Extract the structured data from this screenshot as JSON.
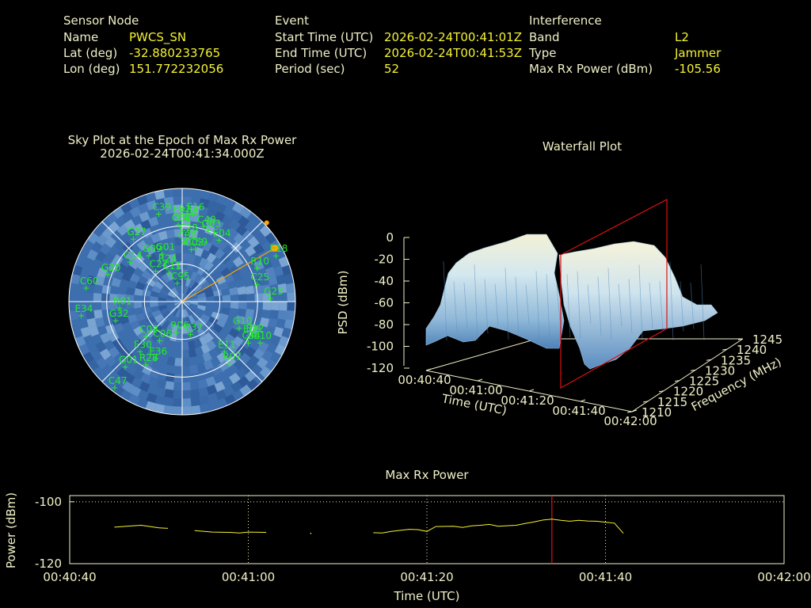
{
  "header": {
    "sensor": {
      "heading": "Sensor Node",
      "name_label": "Name",
      "name_value": "PWCS_SN",
      "lat_label": "Lat (deg)",
      "lat_value": "-32.880233765",
      "lon_label": "Lon (deg)",
      "lon_value": "151.772232056"
    },
    "event": {
      "heading": "Event",
      "start_label": "Start Time (UTC)",
      "start_value": "2026-02-24T00:41:01Z",
      "end_label": "End Time (UTC)",
      "end_value": "2026-02-24T00:41:53Z",
      "period_label": "Period (sec)",
      "period_value": "52"
    },
    "interference": {
      "heading": "Interference",
      "band_label": "Band",
      "band_value": "L2",
      "type_label": "Type",
      "type_value": "Jammer",
      "power_label": "Max Rx Power (dBm)",
      "power_value": "-105.56"
    }
  },
  "colors": {
    "background": "#000000",
    "label_text": "#f0f0c8",
    "value_text": "#f5f232",
    "satellite": "#22ee22",
    "direction": "#ffa500",
    "marker_line": "#dd1111",
    "power_line": "#f5f232"
  },
  "chart_data": [
    {
      "type": "scatter",
      "subtype": "polar sky plot",
      "title": "Sky Plot at the Epoch of Max Rx Power",
      "subtitle": "2026-02-24T00:41:34.000Z",
      "radial_rings_elevation_deg": [
        0,
        30,
        60
      ],
      "interference_direction": {
        "azimuth_deg": 60,
        "elevation_deg": 5
      },
      "satellites": [
        {
          "id": "C39",
          "az": 345,
          "el": 18
        },
        {
          "id": "E16",
          "az": 7,
          "el": 20
        },
        {
          "id": "E02",
          "az": 358,
          "el": 22
        },
        {
          "id": "E06",
          "az": 3,
          "el": 24
        },
        {
          "id": "G31",
          "az": 357,
          "el": 29
        },
        {
          "id": "C40",
          "az": 16,
          "el": 28
        },
        {
          "id": "G03",
          "az": 20,
          "el": 30
        },
        {
          "id": "C28",
          "az": 3,
          "el": 37
        },
        {
          "id": "E04",
          "az": 31,
          "el": 33
        },
        {
          "id": "E18",
          "az": 64,
          "el": 7
        },
        {
          "id": "G27",
          "az": 322,
          "el": 27
        },
        {
          "id": "C30",
          "az": 2,
          "el": 43
        },
        {
          "id": "C59",
          "az": 14,
          "el": 47
        },
        {
          "id": "C03",
          "az": 10,
          "el": 48
        },
        {
          "id": "G01",
          "az": 337,
          "el": 49
        },
        {
          "id": "G09",
          "az": 324,
          "el": 45
        },
        {
          "id": "R10",
          "az": 66,
          "el": 25
        },
        {
          "id": "C25",
          "az": 77,
          "el": 29
        },
        {
          "id": "G23",
          "az": 88,
          "el": 20
        },
        {
          "id": "C27",
          "az": 319,
          "el": 58
        },
        {
          "id": "C11",
          "az": 335,
          "el": 65
        },
        {
          "id": "G20",
          "az": 290,
          "el": 27
        },
        {
          "id": "C60",
          "az": 278,
          "el": 13
        },
        {
          "id": "C14",
          "az": 307,
          "el": 38
        },
        {
          "id": "C95",
          "az": 345,
          "el": 75
        },
        {
          "id": "R24",
          "az": 334,
          "el": 58
        },
        {
          "id": "R01",
          "az": 264,
          "el": 40
        },
        {
          "id": "G32",
          "az": 254,
          "el": 35
        },
        {
          "id": "E34",
          "az": 262,
          "el": 9
        },
        {
          "id": "G10",
          "az": 115,
          "el": 40
        },
        {
          "id": "E12",
          "az": 116,
          "el": 28
        },
        {
          "id": "E09",
          "az": 117,
          "el": 30
        },
        {
          "id": "C37",
          "az": 166,
          "el": 63
        },
        {
          "id": "C08",
          "az": 226,
          "el": 50
        },
        {
          "id": "C06",
          "az": 210,
          "el": 54
        },
        {
          "id": "E30",
          "az": 220,
          "el": 38
        },
        {
          "id": "R06",
          "az": 190,
          "el": 65
        },
        {
          "id": "E11",
          "az": 140,
          "el": 38
        },
        {
          "id": "C34",
          "az": 122,
          "el": 28
        },
        {
          "id": "E10",
          "az": 118,
          "el": 20
        },
        {
          "id": "E36",
          "az": 205,
          "el": 40
        },
        {
          "id": "G01b",
          "az": 221,
          "el": 21
        },
        {
          "id": "R28",
          "az": 210,
          "el": 32
        },
        {
          "id": "R07",
          "az": 143,
          "el": 28
        },
        {
          "id": "C47",
          "az": 218,
          "el": 3
        }
      ]
    },
    {
      "type": "area",
      "subtype": "3d waterfall surface",
      "title": "Waterfall Plot",
      "xlabel": "Time (UTC)",
      "ylabel": "Frequency (MHz)",
      "zlabel": "PSD (dBm)",
      "x_ticks": [
        "00:40:40",
        "00:41:00",
        "00:41:20",
        "00:41:40",
        "00:42:00"
      ],
      "y_ticks": [
        "1210",
        "1215",
        "1220",
        "1225",
        "1230",
        "1235",
        "1240",
        "1245"
      ],
      "z_ticks": [
        "0",
        "-20",
        "-40",
        "-60",
        "-80",
        "-100",
        "-120"
      ],
      "zlim": [
        -120,
        0
      ],
      "ylim": [
        1210,
        1245
      ],
      "marker_time": "00:41:34"
    },
    {
      "type": "line",
      "title": "Max Rx Power",
      "xlabel": "Time (UTC)",
      "ylabel": "Power (dBm)",
      "x_ticks": [
        "00:40:40",
        "00:41:00",
        "00:41:20",
        "00:41:40",
        "00:42:00"
      ],
      "y_ticks": [
        "-100",
        "-120"
      ],
      "x_range_sec": [
        0,
        80
      ],
      "ylim": [
        -120,
        -98
      ],
      "marker_time_sec": 54,
      "series": [
        {
          "values": [
            [
              5,
              -108.2
            ],
            [
              7,
              -107.8
            ],
            [
              8,
              -107.6
            ],
            [
              10,
              -108.4
            ],
            [
              11,
              -108.6
            ]
          ]
        },
        {
          "values": [
            [
              14,
              -109.3
            ],
            [
              16,
              -109.8
            ],
            [
              18,
              -109.9
            ],
            [
              19,
              -110.1
            ],
            [
              20,
              -109.8
            ],
            [
              22,
              -109.9
            ]
          ]
        },
        {
          "values": [
            [
              27,
              -110.2
            ]
          ]
        },
        {
          "values": [
            [
              34,
              -110.0
            ],
            [
              35,
              -110.1
            ],
            [
              36,
              -109.6
            ],
            [
              38,
              -108.9
            ],
            [
              39,
              -109.0
            ],
            [
              40,
              -109.6
            ],
            [
              41,
              -108.0
            ],
            [
              43,
              -107.9
            ],
            [
              44,
              -108.3
            ],
            [
              45,
              -107.8
            ],
            [
              46,
              -107.6
            ],
            [
              47,
              -107.3
            ],
            [
              48,
              -107.9
            ],
            [
              50,
              -107.6
            ],
            [
              51,
              -107.0
            ],
            [
              52,
              -106.5
            ],
            [
              53,
              -105.9
            ],
            [
              54,
              -105.6
            ],
            [
              55,
              -106.0
            ],
            [
              56,
              -106.3
            ],
            [
              57,
              -106.0
            ],
            [
              58,
              -106.2
            ],
            [
              59,
              -106.3
            ],
            [
              60,
              -106.6
            ],
            [
              61,
              -106.9
            ],
            [
              62,
              -110.2
            ]
          ]
        }
      ]
    }
  ]
}
